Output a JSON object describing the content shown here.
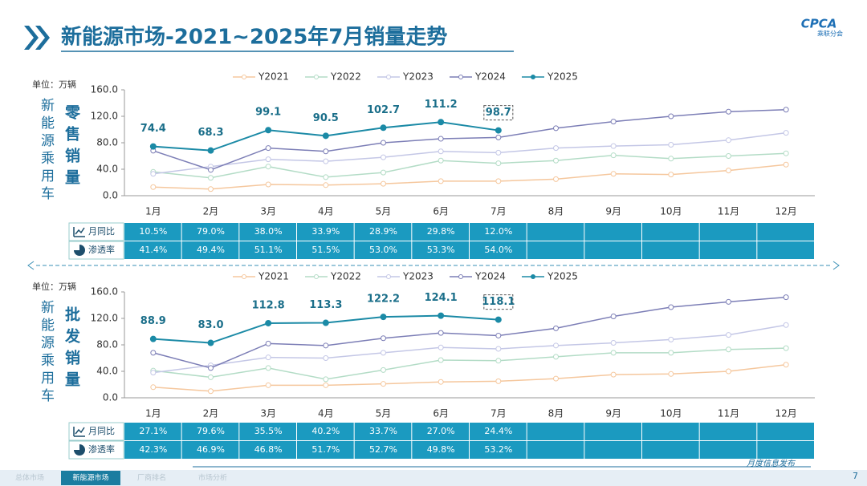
{
  "header": {
    "title": "新能源市场-2021~2025年7月销量走势",
    "logo": "CPCA",
    "logo_sub": "乘联分会"
  },
  "chart_data": [
    {
      "type": "line",
      "unit": "单位：万辆",
      "side_label": "新能源乘用车",
      "title": "零售销量",
      "categories": [
        "1月",
        "2月",
        "3月",
        "4月",
        "5月",
        "6月",
        "7月",
        "8月",
        "9月",
        "10月",
        "11月",
        "12月"
      ],
      "ylim": [
        0,
        160
      ],
      "yticks": [
        {
          "value": 0,
          "label": "0.0"
        },
        {
          "value": 40,
          "label": "40.0"
        },
        {
          "value": 80,
          "label": "80.0"
        },
        {
          "value": 120,
          "label": "120.0"
        },
        {
          "value": 160,
          "label": "160.0"
        }
      ],
      "grid": false,
      "legend": "top",
      "series": [
        {
          "name": "Y2021",
          "color": "#f5c79d",
          "values": [
            13,
            10,
            17,
            16,
            18,
            22,
            22,
            25,
            33,
            32,
            38,
            47
          ]
        },
        {
          "name": "Y2022",
          "color": "#b3dcc6",
          "values": [
            36,
            27,
            44,
            28,
            35,
            53,
            49,
            53,
            61,
            56,
            60,
            64
          ]
        },
        {
          "name": "Y2023",
          "color": "#c4c7e6",
          "values": [
            33,
            44,
            55,
            52,
            58,
            67,
            65,
            72,
            75,
            77,
            84,
            95
          ]
        },
        {
          "name": "Y2024",
          "color": "#7c7eb6",
          "values": [
            68,
            39,
            72,
            67,
            80,
            86,
            88,
            102,
            112,
            120,
            127,
            130
          ]
        },
        {
          "name": "Y2025",
          "color": "#1b8aa6",
          "values": [
            74.4,
            68.3,
            99.1,
            90.5,
            102.7,
            111.2,
            98.7,
            null,
            null,
            null,
            null,
            null
          ],
          "value_labels": [
            "74.4",
            "68.3",
            "99.1",
            "90.5",
            "102.7",
            "111.2",
            "98.7",
            null,
            null,
            null,
            null,
            null
          ]
        }
      ]
    },
    {
      "type": "line",
      "unit": "单位：万辆",
      "side_label": "新能源乘用车",
      "title": "批发销量",
      "categories": [
        "1月",
        "2月",
        "3月",
        "4月",
        "5月",
        "6月",
        "7月",
        "8月",
        "9月",
        "10月",
        "11月",
        "12月"
      ],
      "ylim": [
        0,
        160
      ],
      "yticks": [
        {
          "value": 0,
          "label": "0.0"
        },
        {
          "value": 40,
          "label": "40.0"
        },
        {
          "value": 80,
          "label": "80.0"
        },
        {
          "value": 120,
          "label": "120.0"
        },
        {
          "value": 160,
          "label": "160.0"
        }
      ],
      "grid": false,
      "legend": "top",
      "series": [
        {
          "name": "Y2021",
          "color": "#f5c79d",
          "values": [
            16,
            10,
            19,
            19,
            21,
            24,
            25,
            29,
            35,
            36,
            40,
            50
          ]
        },
        {
          "name": "Y2022",
          "color": "#b3dcc6",
          "values": [
            41,
            31,
            45,
            28,
            42,
            57,
            56,
            62,
            68,
            68,
            73,
            75
          ]
        },
        {
          "name": "Y2023",
          "color": "#c4c7e6",
          "values": [
            38,
            49,
            61,
            60,
            68,
            76,
            74,
            79,
            83,
            88,
            95,
            110
          ]
        },
        {
          "name": "Y2024",
          "color": "#7c7eb6",
          "values": [
            68,
            45,
            82,
            79,
            90,
            98,
            94,
            105,
            123,
            137,
            145,
            152
          ]
        },
        {
          "name": "Y2025",
          "color": "#1b8aa6",
          "values": [
            88.9,
            83.0,
            112.8,
            113.3,
            122.2,
            124.1,
            118.1,
            null,
            null,
            null,
            null,
            null
          ],
          "value_labels": [
            "88.9",
            "83.0",
            "112.8",
            "113.3",
            "122.2",
            "124.1",
            "118.1",
            null,
            null,
            null,
            null,
            null
          ]
        }
      ]
    }
  ],
  "tables": [
    {
      "rows": [
        {
          "label": "月同比",
          "cells": [
            "10.5%",
            "79.0%",
            "38.0%",
            "33.9%",
            "28.9%",
            "29.8%",
            "12.0%"
          ]
        },
        {
          "label": "渗透率",
          "cells": [
            "41.4%",
            "49.4%",
            "51.1%",
            "51.5%",
            "53.0%",
            "53.3%",
            "54.0%"
          ]
        }
      ]
    },
    {
      "rows": [
        {
          "label": "月同比",
          "cells": [
            "27.1%",
            "79.6%",
            "35.5%",
            "40.2%",
            "33.7%",
            "27.0%",
            "24.4%"
          ]
        },
        {
          "label": "渗透率",
          "cells": [
            "42.3%",
            "46.9%",
            "46.8%",
            "51.7%",
            "52.7%",
            "49.8%",
            "53.2%"
          ]
        }
      ]
    }
  ],
  "footer": {
    "tabs": [
      "总体市场",
      "新能源市场",
      "厂商排名",
      "市场分析"
    ],
    "active": 1,
    "note": "月度信息发布",
    "page": "7"
  }
}
